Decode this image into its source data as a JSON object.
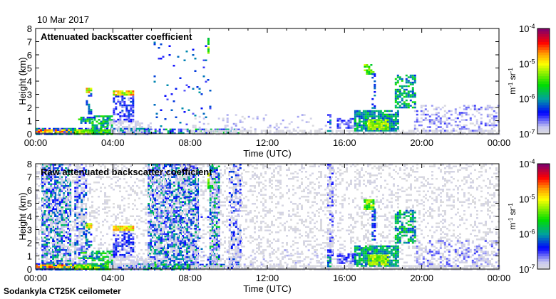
{
  "header": {
    "date": "10 Mar 2017"
  },
  "footer": {
    "site": "Sodankyla CT25K ceilometer"
  },
  "colors": {
    "grey": "#dcdcdc",
    "lavender": "#c8c8f0",
    "blue": "#0000ff",
    "teal": "#00a0a0",
    "green": "#00dd00",
    "yellow": "#ffff00",
    "orange": "#ff9900",
    "red": "#ff0000",
    "purple": "#7a0070"
  },
  "chart_data": [
    {
      "type": "heatmap",
      "title": "Attenuated backscatter coefficient",
      "xlabel": "Time (UTC)",
      "ylabel": "Height (km)",
      "xlim": [
        0,
        24
      ],
      "ylim": [
        0,
        8
      ],
      "xticks": [
        "00:00",
        "04:00",
        "08:00",
        "12:00",
        "16:00",
        "20:00",
        "00:00"
      ],
      "yticks": [
        "0",
        "1",
        "2",
        "3",
        "4",
        "5",
        "6",
        "7",
        "8"
      ],
      "colorbar": {
        "label_base": "m",
        "label_exp1": "-1",
        "label_mid": " sr",
        "label_exp2": "-1",
        "ticks": [
          {
            "base": "10",
            "exp": "-7"
          },
          {
            "base": "10",
            "exp": "-6"
          },
          {
            "base": "10",
            "exp": "-5"
          },
          {
            "base": "10",
            "exp": "-4"
          }
        ],
        "range_log10": [
          -7,
          -4
        ]
      },
      "features": [
        {
          "t": [
            0,
            5.8
          ],
          "h": [
            0,
            0.45
          ],
          "logv": [
            -6.8,
            -5.8
          ],
          "density": 0.9
        },
        {
          "t": [
            0,
            2.2
          ],
          "h": [
            0.15,
            0.35
          ],
          "logv": [
            -5,
            -4.4
          ],
          "density": 0.8
        },
        {
          "t": [
            2,
            3.9
          ],
          "h": [
            0,
            0.35
          ],
          "logv": [
            -5.6,
            -5
          ],
          "density": 0.9
        },
        {
          "t": [
            2.9,
            3.9
          ],
          "h": [
            0,
            1.4
          ],
          "logv": [
            -6.2,
            -5.4
          ],
          "density": 0.7
        },
        {
          "t": [
            2.2,
            3.0
          ],
          "h": [
            0.8,
            1.3
          ],
          "logv": [
            -6.5,
            -5.3
          ],
          "density": 0.6
        },
        {
          "t": [
            2.6,
            2.9
          ],
          "h": [
            3.1,
            3.5
          ],
          "logv": [
            -5.5,
            -4.6
          ],
          "density": 0.9
        },
        {
          "t": [
            2.6,
            2.9
          ],
          "h": [
            1.5,
            3.1
          ],
          "logv": [
            -6.5,
            -5.8
          ],
          "density": 0.5
        },
        {
          "t": [
            4.0,
            5.0
          ],
          "h": [
            2.9,
            3.3
          ],
          "logv": [
            -5.4,
            -4.5
          ],
          "density": 0.95
        },
        {
          "t": [
            4.0,
            5.0
          ],
          "h": [
            1.0,
            2.9
          ],
          "logv": [
            -6.8,
            -6.2
          ],
          "density": 0.6
        },
        {
          "t": [
            3.8,
            6.0
          ],
          "h": [
            0,
            1.0
          ],
          "logv": [
            -7,
            -6.8
          ],
          "density": 0.6
        },
        {
          "t": [
            5.6,
            10.5
          ],
          "h": [
            0,
            0.4
          ],
          "logv": [
            -6.8,
            -5.5
          ],
          "density": 0.7
        },
        {
          "t": [
            6.0,
            9.0
          ],
          "h": [
            0.5,
            7.0
          ],
          "logv": [
            -6.6,
            -6.0
          ],
          "density": 0.04
        },
        {
          "t": [
            8.9,
            9.0
          ],
          "h": [
            6.2,
            7.3
          ],
          "logv": [
            -5.8,
            -5
          ],
          "density": 0.9
        },
        {
          "t": [
            8.0,
            24
          ],
          "h": [
            0,
            0.3
          ],
          "logv": [
            -7,
            -6.9
          ],
          "density": 0.7
        },
        {
          "t": [
            8.0,
            15.0
          ],
          "h": [
            0.3,
            1.5
          ],
          "logv": [
            -7,
            -6.7
          ],
          "density": 0.12
        },
        {
          "t": [
            15.1,
            15.3
          ],
          "h": [
            0.2,
            1.5
          ],
          "logv": [
            -6.6,
            -5.8
          ],
          "density": 0.7
        },
        {
          "t": [
            15.6,
            16.5
          ],
          "h": [
            0.5,
            1.2
          ],
          "logv": [
            -6.8,
            -6.3
          ],
          "density": 0.7
        },
        {
          "t": [
            16.5,
            18.8
          ],
          "h": [
            0.2,
            1.8
          ],
          "logv": [
            -6.3,
            -5.6
          ],
          "density": 0.85
        },
        {
          "t": [
            17.2,
            18.3
          ],
          "h": [
            0.3,
            1.1
          ],
          "logv": [
            -5.5,
            -5
          ],
          "density": 0.9
        },
        {
          "t": [
            17.0,
            17.5
          ],
          "h": [
            4.6,
            5.3
          ],
          "logv": [
            -5.8,
            -5
          ],
          "density": 0.8
        },
        {
          "t": [
            17.4,
            17.6
          ],
          "h": [
            2.0,
            4.6
          ],
          "logv": [
            -6.5,
            -6
          ],
          "density": 0.5
        },
        {
          "t": [
            18.6,
            19.6
          ],
          "h": [
            2.0,
            4.5
          ],
          "logv": [
            -6.3,
            -5.5
          ],
          "density": 0.6
        },
        {
          "t": [
            19.6,
            24
          ],
          "h": [
            0.3,
            2.2
          ],
          "logv": [
            -7,
            -6.5
          ],
          "density": 0.35
        }
      ]
    },
    {
      "type": "heatmap",
      "title": "Raw attenuated backscatter coefficient",
      "xlabel": "Time (UTC)",
      "ylabel": "Height (km)",
      "xlim": [
        0,
        24
      ],
      "ylim": [
        0,
        8
      ],
      "xticks": [
        "00:00",
        "04:00",
        "08:00",
        "12:00",
        "16:00",
        "20:00",
        "00:00"
      ],
      "yticks": [
        "0",
        "1",
        "2",
        "3",
        "4",
        "5",
        "6",
        "7",
        "8"
      ],
      "colorbar": {
        "label_base": "m",
        "label_exp1": "-1",
        "label_mid": " sr",
        "label_exp2": "-1",
        "ticks": [
          {
            "base": "10",
            "exp": "-7"
          },
          {
            "base": "10",
            "exp": "-6"
          },
          {
            "base": "10",
            "exp": "-5"
          },
          {
            "base": "10",
            "exp": "-4"
          }
        ],
        "range_log10": [
          -7,
          -4
        ]
      },
      "noise_bands": [
        {
          "t": [
            0.3,
            1.8
          ],
          "logv": [
            -7,
            -5.8
          ],
          "density": 0.75
        },
        {
          "t": [
            2.0,
            2.6
          ],
          "logv": [
            -7,
            -6.0
          ],
          "density": 0.6
        },
        {
          "t": [
            5.8,
            8.4
          ],
          "logv": [
            -7,
            -5.8
          ],
          "density": 0.75
        },
        {
          "t": [
            9.0,
            9.5
          ],
          "logv": [
            -7,
            -5.6
          ],
          "density": 0.75
        },
        {
          "t": [
            10.0,
            10.6
          ],
          "logv": [
            -7,
            -6.2
          ],
          "density": 0.5
        },
        {
          "t": [
            15.1,
            15.4
          ],
          "logv": [
            -7,
            -6.4
          ],
          "density": 0.5
        },
        {
          "t": [
            0,
            24
          ],
          "logv": [
            -7,
            -6.9
          ],
          "density": 0.25
        }
      ]
    }
  ]
}
